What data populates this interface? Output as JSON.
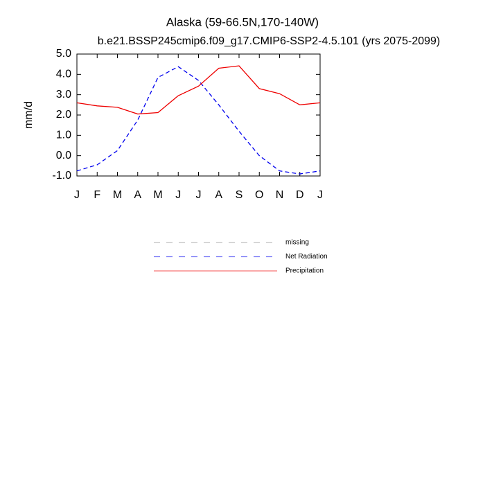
{
  "chart_data": {
    "type": "line",
    "title": "Alaska (59-66.5N,170-140W)",
    "subtitle": "b.e21.BSSP245cmip6.f09_g17.CMIP6-SSP2-4.5.101 (yrs 2075-2099)",
    "y_label": "mm/d",
    "categories": [
      "J",
      "F",
      "M",
      "A",
      "M",
      "J",
      "J",
      "A",
      "S",
      "O",
      "N",
      "D",
      "J"
    ],
    "series": [
      {
        "name": "missing",
        "color": "#888888",
        "dashed": true,
        "values": [
          null,
          null,
          null,
          null,
          null,
          null,
          null,
          null,
          null,
          null,
          null,
          null,
          null
        ]
      },
      {
        "name": "Net Radiation",
        "color": "#0000ee",
        "dashed": true,
        "values": [
          -0.75,
          -0.45,
          0.25,
          1.75,
          3.85,
          4.38,
          3.7,
          2.5,
          1.2,
          0.0,
          -0.75,
          -0.9,
          -0.75
        ]
      },
      {
        "name": "Precipitation",
        "color": "#ee0000",
        "dashed": false,
        "values": [
          2.6,
          2.45,
          2.38,
          2.05,
          2.12,
          2.95,
          3.42,
          4.3,
          4.42,
          3.3,
          3.05,
          2.5,
          2.6
        ]
      }
    ],
    "ylim": [
      -1,
      5
    ],
    "yticks": [
      {
        "value": -1,
        "label": "-1.0"
      },
      {
        "value": 0,
        "label": "0.0"
      },
      {
        "value": 1,
        "label": "1.0"
      },
      {
        "value": 2,
        "label": "2.0"
      },
      {
        "value": 3,
        "label": "3.0"
      },
      {
        "value": 4,
        "label": "4.0"
      },
      {
        "value": 5,
        "label": "5.0"
      }
    ],
    "grid": false
  }
}
